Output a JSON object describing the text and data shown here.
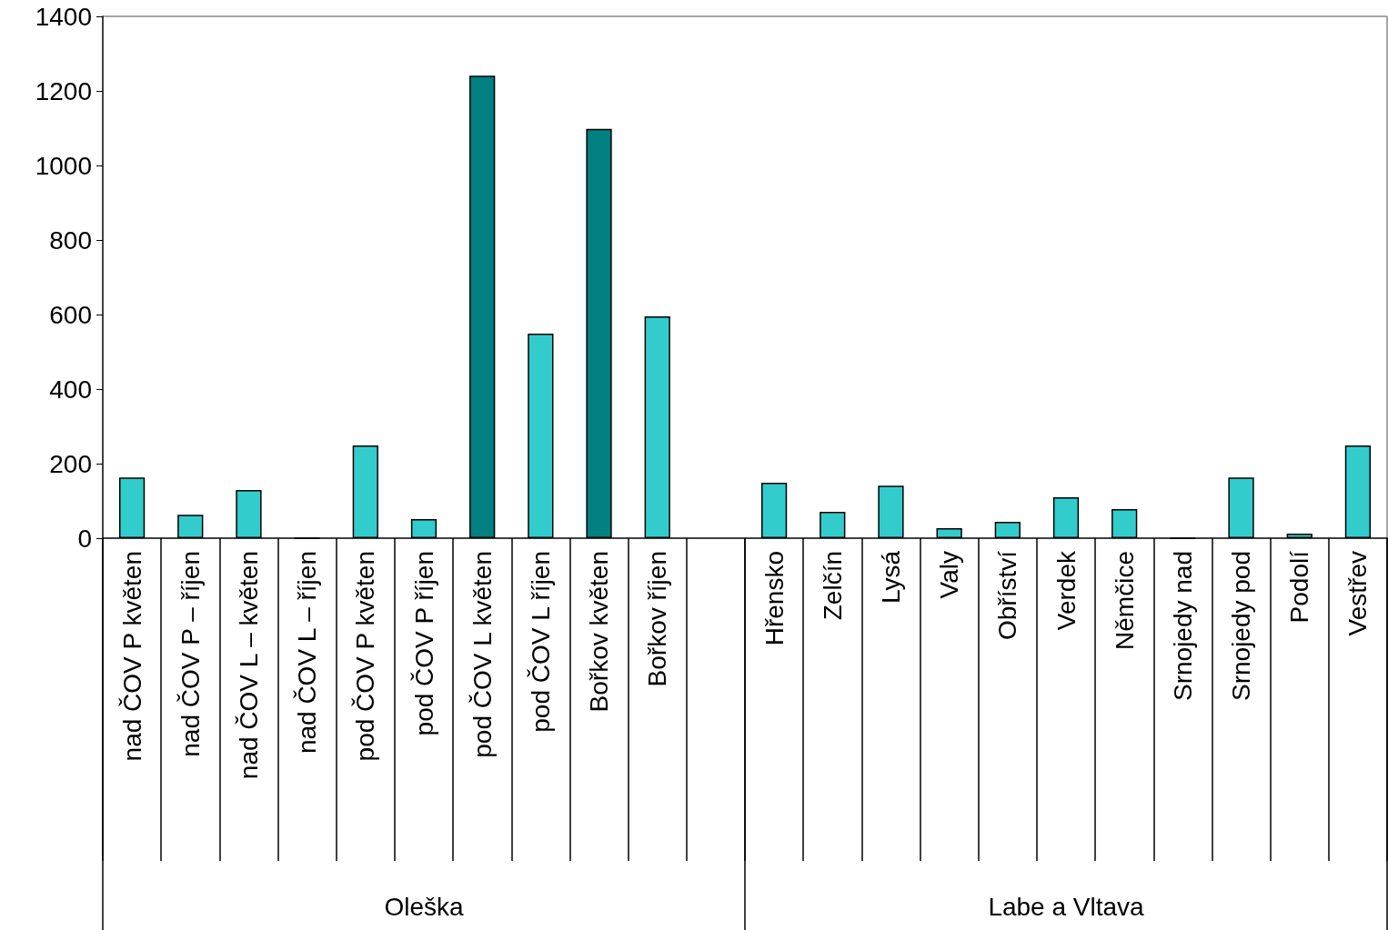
{
  "chart_data": {
    "type": "bar",
    "categories": [
      "nad ČOV P květen",
      "nad ČOV P – říjen",
      "nad ČOV L – květen",
      "nad ČOV L – říjen",
      "pod ČOV P květen",
      "pod ČOV P říjen",
      "pod ČOV L květen",
      "pod ČOV L říjen",
      "Bořkov květen",
      "Bořkov říjen",
      null,
      "Hřensko",
      "Zelčín",
      "Lysá",
      "Valy",
      "Obříství",
      "Verdek",
      "Němčice",
      "Srnojedy nad",
      "Srnojedy pod",
      "Podolí",
      "Vestřev"
    ],
    "values": [
      163,
      63,
      129,
      0,
      249,
      51,
      1241,
      549,
      1098,
      595,
      null,
      149,
      71,
      141,
      27,
      44,
      110,
      78,
      0,
      163,
      12,
      249
    ],
    "colors": [
      "#33cccc",
      "#33cccc",
      "#33cccc",
      "#33cccc",
      "#33cccc",
      "#33cccc",
      "#008080",
      "#33cccc",
      "#008080",
      "#33cccc",
      "#33cccc",
      "#33cccc",
      "#33cccc",
      "#33cccc",
      "#33cccc",
      "#33cccc",
      "#33cccc",
      "#33cccc",
      "#33cccc",
      "#33cccc",
      "#33cccc",
      "#33cccc"
    ],
    "ylim": [
      0,
      1400
    ],
    "yticks": [
      0,
      200,
      400,
      600,
      800,
      1000,
      1200,
      1400
    ],
    "grid": false,
    "annotations": [
      "Oleška",
      "Labe a Vltava"
    ]
  }
}
